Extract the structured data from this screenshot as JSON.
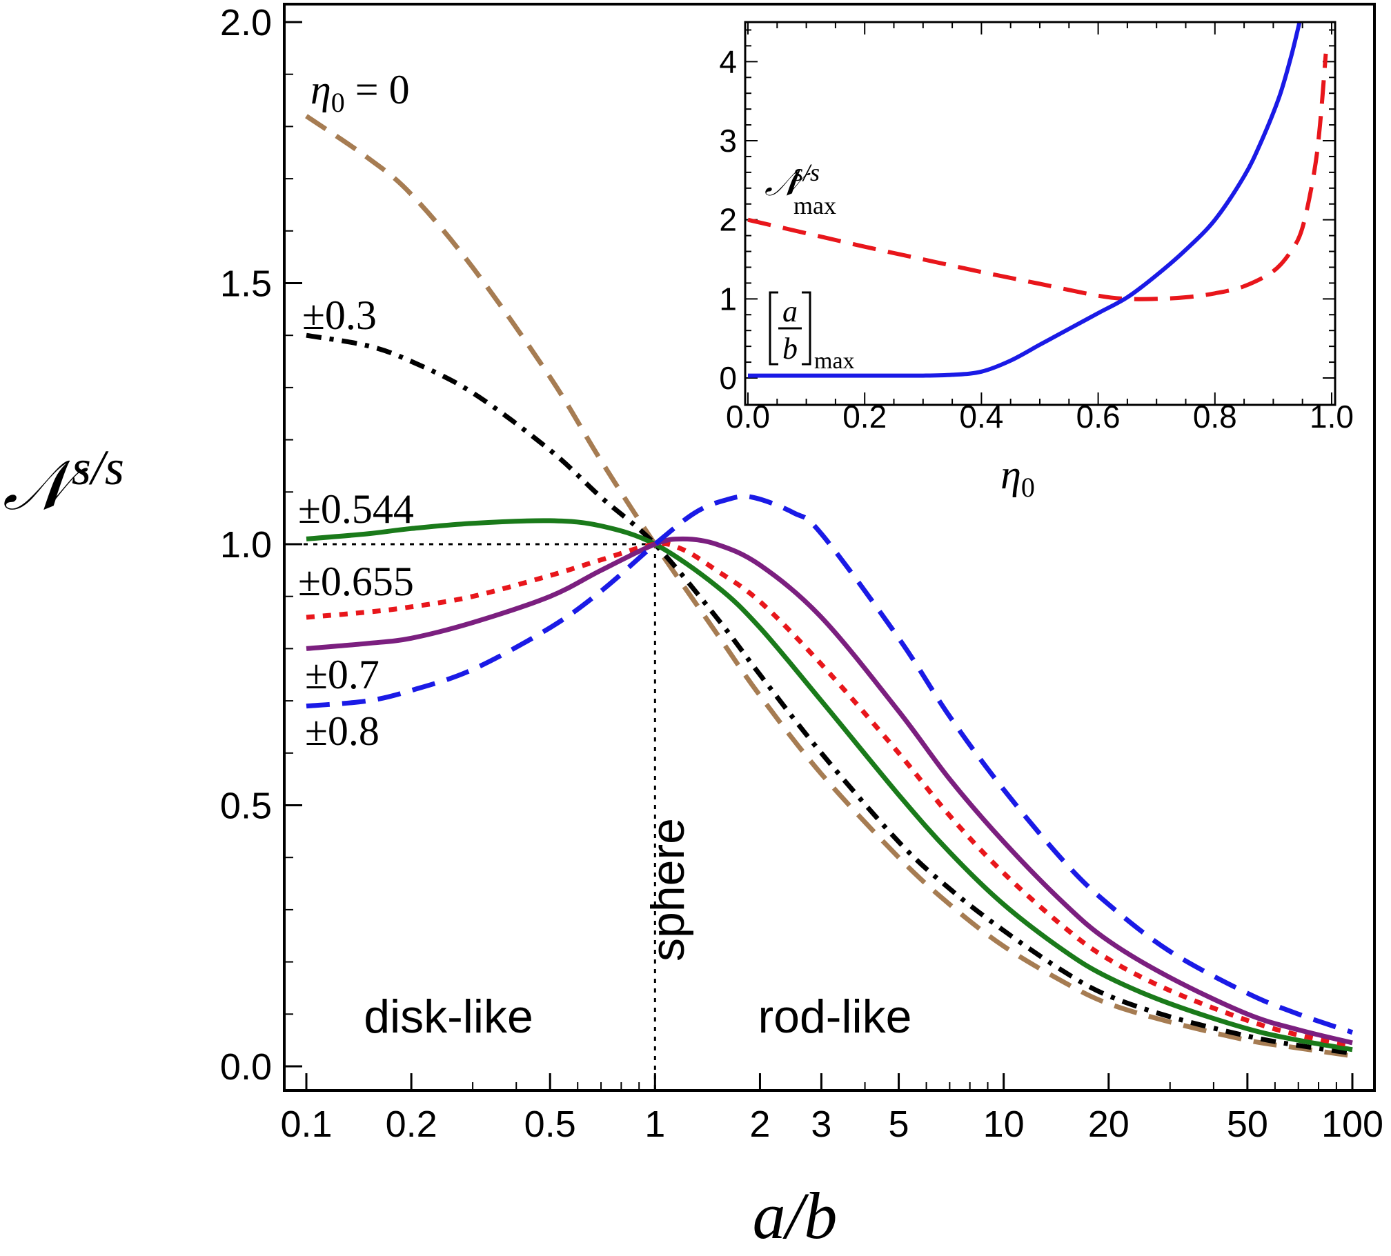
{
  "chart_data": [
    {
      "type": "line",
      "xlabel": "a/b",
      "ylabel": "𝒩",
      "ylabel_superscript": "s/s",
      "xscale": "log",
      "xlim": [
        0.1,
        100
      ],
      "ylim": [
        0,
        2.0
      ],
      "xticks": [
        0.1,
        0.2,
        0.5,
        1,
        2,
        3,
        5,
        10,
        20,
        50,
        100
      ],
      "xtick_labels": [
        "0.1",
        "0.2",
        "0.5",
        "1",
        "2",
        "3",
        "5",
        "10",
        "20",
        "50",
        "100"
      ],
      "yticks": [
        0.0,
        0.5,
        1.0,
        1.5,
        2.0
      ],
      "ytick_labels": [
        "0.0",
        "0.5",
        "1.0",
        "1.5",
        "2.0"
      ],
      "annotations": {
        "sphere": "sphere",
        "disk_like": "disk-like",
        "rod_like": "rod-like"
      },
      "reference_lines": {
        "y": 1.0,
        "x": 1
      },
      "series": [
        {
          "name": "η0 = 0",
          "label_var": "η",
          "label_sub": "0",
          "label_rest": " = 0",
          "color": "#A67C52",
          "style": "dashed",
          "x": [
            0.1,
            0.15,
            0.2,
            0.3,
            0.5,
            0.7,
            1,
            1.5,
            2,
            3,
            5,
            7,
            10,
            15,
            20,
            30,
            50,
            70,
            100
          ],
          "y": [
            1.82,
            1.74,
            1.67,
            1.53,
            1.32,
            1.16,
            1.0,
            0.83,
            0.71,
            0.56,
            0.4,
            0.31,
            0.23,
            0.16,
            0.12,
            0.085,
            0.05,
            0.035,
            0.02
          ]
        },
        {
          "name": "±0.3",
          "label_var": "",
          "label_sub": "",
          "label_rest": "±0.3",
          "color": "#000000",
          "style": "dashdot",
          "x": [
            0.1,
            0.15,
            0.2,
            0.3,
            0.5,
            0.7,
            1,
            1.5,
            2,
            3,
            5,
            7,
            10,
            15,
            20,
            30,
            50,
            70,
            100
          ],
          "y": [
            1.4,
            1.38,
            1.35,
            1.29,
            1.18,
            1.09,
            1.0,
            0.86,
            0.75,
            0.6,
            0.43,
            0.34,
            0.26,
            0.18,
            0.135,
            0.095,
            0.058,
            0.04,
            0.025
          ]
        },
        {
          "name": "±0.544",
          "label_var": "",
          "label_sub": "",
          "label_rest": "±0.544",
          "color": "#1A7A1A",
          "style": "solid",
          "x": [
            0.1,
            0.15,
            0.2,
            0.3,
            0.5,
            0.7,
            1,
            1.5,
            2,
            3,
            5,
            7,
            10,
            15,
            20,
            30,
            50,
            70,
            100
          ],
          "y": [
            1.01,
            1.02,
            1.03,
            1.04,
            1.045,
            1.035,
            1.0,
            0.92,
            0.84,
            0.7,
            0.52,
            0.41,
            0.31,
            0.22,
            0.17,
            0.12,
            0.072,
            0.05,
            0.032
          ]
        },
        {
          "name": "±0.655",
          "label_var": "",
          "label_sub": "",
          "label_rest": "±0.655",
          "color": "#E8161B",
          "style": "dotted",
          "x": [
            0.1,
            0.15,
            0.2,
            0.3,
            0.5,
            0.7,
            1,
            1.2,
            1.5,
            2,
            3,
            5,
            7,
            10,
            15,
            20,
            30,
            50,
            70,
            100
          ],
          "y": [
            0.86,
            0.87,
            0.88,
            0.9,
            0.94,
            0.97,
            1.0,
            0.99,
            0.95,
            0.89,
            0.77,
            0.6,
            0.48,
            0.37,
            0.265,
            0.205,
            0.145,
            0.088,
            0.06,
            0.04
          ]
        },
        {
          "name": "±0.7",
          "label_var": "",
          "label_sub": "",
          "label_rest": "±0.7",
          "color": "#7B1F7F",
          "style": "solid",
          "x": [
            0.1,
            0.15,
            0.2,
            0.3,
            0.5,
            0.7,
            1,
            1.2,
            1.5,
            2,
            3,
            5,
            7,
            10,
            15,
            20,
            30,
            50,
            70,
            100
          ],
          "y": [
            0.8,
            0.81,
            0.82,
            0.85,
            0.9,
            0.95,
            1.0,
            1.01,
            1.0,
            0.96,
            0.86,
            0.68,
            0.55,
            0.43,
            0.31,
            0.24,
            0.17,
            0.1,
            0.07,
            0.045
          ]
        },
        {
          "name": "±0.8",
          "label_var": "",
          "label_sub": "",
          "label_rest": "±0.8",
          "color": "#1A1AE6",
          "style": "dashed",
          "x": [
            0.1,
            0.15,
            0.2,
            0.3,
            0.5,
            0.7,
            1,
            1.3,
            1.6,
            1.9,
            2.5,
            3,
            5,
            7,
            10,
            15,
            20,
            30,
            50,
            70,
            100
          ],
          "y": [
            0.69,
            0.7,
            0.72,
            0.76,
            0.84,
            0.91,
            1.0,
            1.06,
            1.085,
            1.09,
            1.06,
            1.02,
            0.82,
            0.67,
            0.53,
            0.39,
            0.31,
            0.22,
            0.14,
            0.1,
            0.065
          ]
        }
      ]
    },
    {
      "type": "line",
      "xlabel": "η",
      "xlabel_sub": "0",
      "xlim": [
        0.0,
        1.0
      ],
      "ylim": [
        0,
        4.5
      ],
      "xticks": [
        0.0,
        0.2,
        0.4,
        0.6,
        0.8,
        1.0
      ],
      "xtick_labels": [
        "0.0",
        "0.2",
        "0.4",
        "0.6",
        "0.8",
        "1.0"
      ],
      "yticks": [
        0,
        1,
        2,
        3,
        4
      ],
      "ytick_labels": [
        "0",
        "1",
        "2",
        "3",
        "4"
      ],
      "series": [
        {
          "name": "𝒩 s/s max",
          "label_var": "𝒩",
          "label_sup": "s/s",
          "label_sub": "max",
          "color": "#E8161B",
          "style": "dashed",
          "x": [
            0.0,
            0.1,
            0.2,
            0.3,
            0.4,
            0.5,
            0.6,
            0.65,
            0.7,
            0.75,
            0.8,
            0.85,
            0.9,
            0.93,
            0.95,
            0.97,
            0.98,
            0.99
          ],
          "y": [
            2.0,
            1.83,
            1.66,
            1.5,
            1.34,
            1.19,
            1.04,
            1.0,
            1.0,
            1.02,
            1.07,
            1.16,
            1.35,
            1.6,
            1.9,
            2.6,
            3.2,
            4.1
          ]
        },
        {
          "name": "[a/b] max",
          "label_var": "a",
          "label_den": "b",
          "label_sub": "max",
          "color": "#1A1AE6",
          "style": "solid",
          "x": [
            0.0,
            0.1,
            0.2,
            0.3,
            0.35,
            0.4,
            0.45,
            0.5,
            0.55,
            0.6,
            0.65,
            0.7,
            0.75,
            0.8,
            0.85,
            0.88,
            0.91,
            0.93,
            0.945
          ],
          "y": [
            0.03,
            0.03,
            0.03,
            0.03,
            0.04,
            0.08,
            0.22,
            0.42,
            0.62,
            0.82,
            1.02,
            1.3,
            1.62,
            2.0,
            2.55,
            3.0,
            3.55,
            4.05,
            4.5
          ]
        }
      ]
    }
  ]
}
